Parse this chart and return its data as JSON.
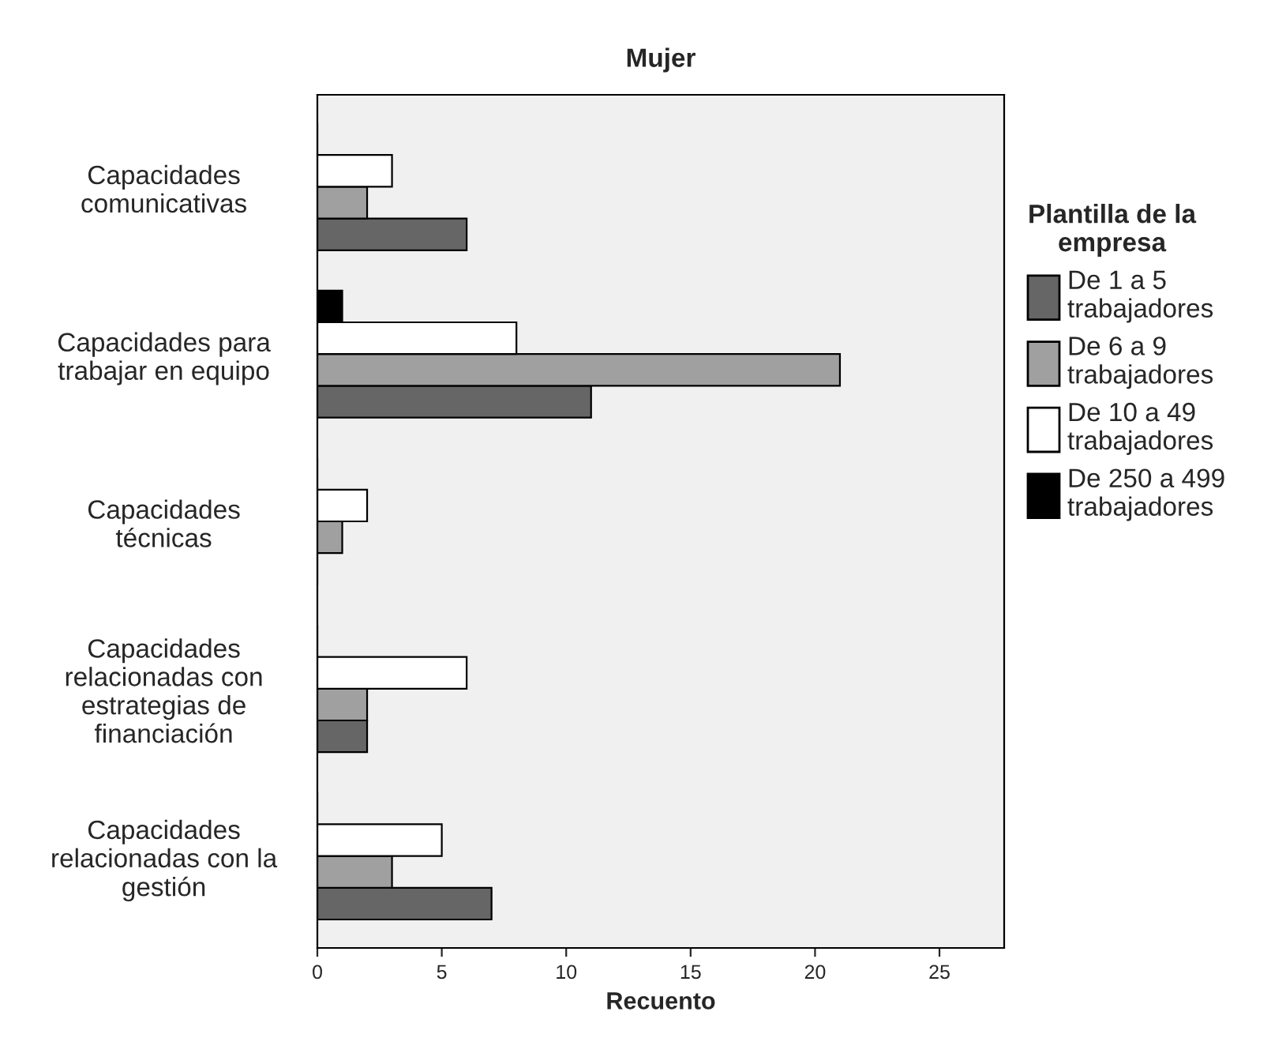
{
  "chart_data": {
    "type": "bar",
    "orientation": "horizontal",
    "title": "Mujer",
    "xlabel": "Recuento",
    "legend_title": "Plantilla de la\nempresa",
    "legend": "right",
    "categories": [
      "Capacidades\ncomunicativas",
      "Capacidades para\ntrabajar en equipo",
      "Capacidades\ntécnicas",
      "Capacidades\nrelacionadas con\nestrategias de\nfinanciación",
      "Capacidades\nrelacionadas con la\ngestión"
    ],
    "series": [
      {
        "name": "De 1 a 5\ntrabajadores",
        "color": "#666666",
        "values": [
          6,
          11,
          0,
          2,
          7
        ]
      },
      {
        "name": "De 6 a 9\ntrabajadores",
        "color": "#a0a0a0",
        "values": [
          2,
          21,
          1,
          2,
          3
        ]
      },
      {
        "name": "De 10 a 49\ntrabajadores",
        "color": "#ffffff",
        "values": [
          3,
          8,
          2,
          6,
          5
        ]
      },
      {
        "name": "De 250 a 499\ntrabajadores",
        "color": "#000000",
        "values": [
          0,
          1,
          0,
          0,
          0
        ]
      }
    ],
    "xlim": [
      0,
      27.6
    ],
    "xticks": [
      0,
      5,
      10,
      15,
      20,
      25
    ],
    "grid": false
  }
}
